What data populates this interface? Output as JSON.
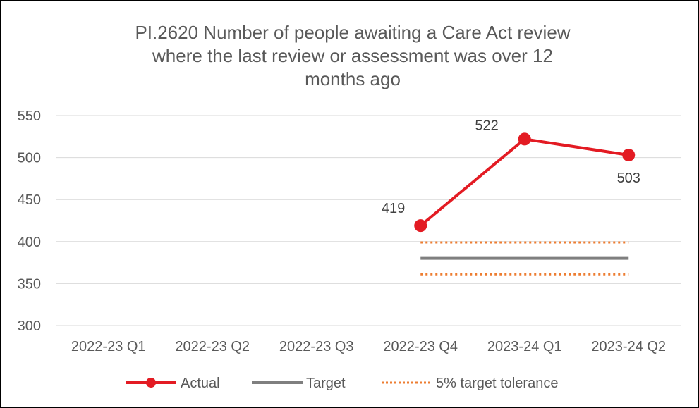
{
  "chart_data": {
    "type": "line",
    "title_lines": [
      "PI.2620 Number of people awaiting a Care Act review",
      "where the last review or assessment was over 12",
      "months ago"
    ],
    "categories": [
      "2022-23 Q1",
      "2022-23 Q2",
      "2022-23 Q3",
      "2022-23 Q4",
      "2023-24 Q1",
      "2023-24 Q2"
    ],
    "ylim": [
      300,
      550
    ],
    "yticks": [
      "300",
      "350",
      "400",
      "450",
      "500",
      "550"
    ],
    "grid": true,
    "legend_position": "bottom",
    "series": [
      {
        "name": "Actual",
        "color": "#e31b23",
        "values": [
          null,
          null,
          null,
          419,
          522,
          503
        ],
        "data_labels": [
          "",
          "",
          "",
          "419",
          "522",
          "503"
        ]
      },
      {
        "name": "Target",
        "color": "#7f7f7f",
        "values": [
          null,
          null,
          null,
          380,
          380,
          380
        ]
      },
      {
        "name": "5% target tolerance",
        "color": "#ed7d31",
        "upper": [
          null,
          null,
          null,
          399,
          399,
          399
        ],
        "lower": [
          null,
          null,
          null,
          361,
          361,
          361
        ]
      }
    ]
  }
}
